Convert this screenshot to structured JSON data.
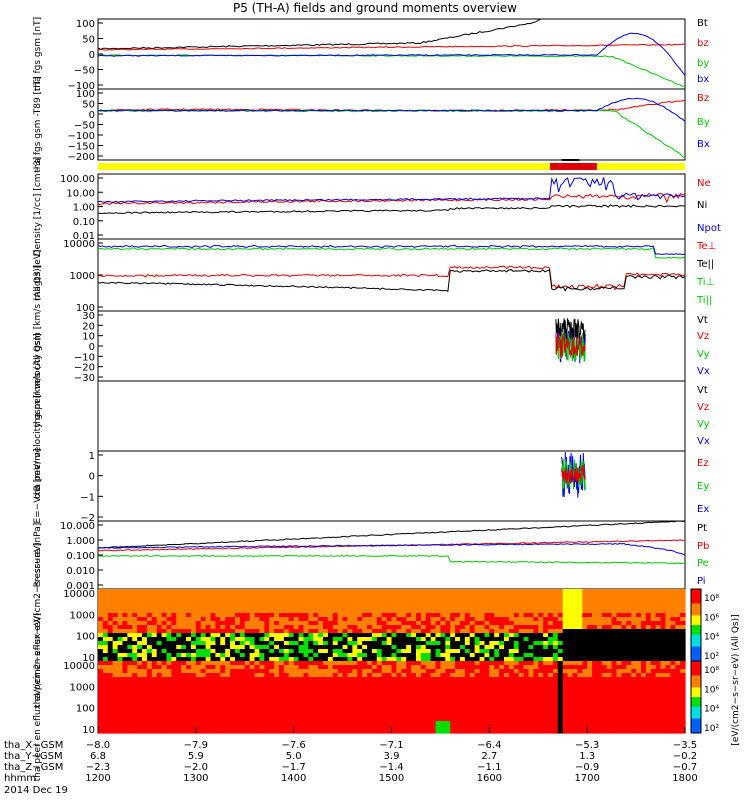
{
  "title": "P5 (TH-A) fields and ground moments overview",
  "date": "2014 Dec 19",
  "colors": {
    "black": "#000000",
    "red": "#e00000",
    "green": "#00c800",
    "blue": "#0000e0",
    "bar_yellow": "#ffff00"
  },
  "chart_data": [
    {
      "type": "line",
      "id": "fgs_gsm",
      "ylabel": "tha fgs gsm [nT]",
      "ylim": [
        -100,
        100
      ],
      "yticks": [
        "100",
        "50",
        "0",
        "−50",
        "−100"
      ],
      "series": [
        {
          "name": "Bt",
          "color": "black"
        },
        {
          "name": "bz",
          "color": "red"
        },
        {
          "name": "by",
          "color": "green"
        },
        {
          "name": "bx",
          "color": "blue"
        }
      ]
    },
    {
      "type": "line",
      "id": "fgs_dip",
      "ylabel": "tha fgs gsm -T89 [nT]",
      "ylim": [
        -230,
        100
      ],
      "yticks": [
        "100",
        "50",
        "0",
        "−50",
        "−100",
        "−150",
        "−200"
      ],
      "series": [
        {
          "name": "Bz",
          "color": "red"
        },
        {
          "name": "By",
          "color": "green"
        },
        {
          "name": "Bx",
          "color": "blue"
        }
      ]
    },
    {
      "type": "line",
      "id": "density",
      "ylabel": "Density [1/cc] [cm−3]",
      "yscale": "log",
      "yticks": [
        "100.00",
        "10.00",
        "1.00",
        "0.10",
        "0.01"
      ],
      "series": [
        {
          "name": "Ne",
          "color": "red"
        },
        {
          "name": "Ni",
          "color": "black"
        },
        {
          "name": "Npot",
          "color": "blue"
        }
      ]
    },
    {
      "type": "line",
      "id": "temp",
      "ylabel": "magt3 [eV]",
      "yscale": "log",
      "yticks": [
        "10000",
        "1000",
        "100"
      ],
      "series": [
        {
          "name": "Te⊥",
          "color": "red"
        },
        {
          "name": "Te||",
          "color": "black"
        },
        {
          "name": "Ti⊥",
          "color": "green"
        },
        {
          "name": "Ti||",
          "color": "green"
        }
      ]
    },
    {
      "type": "line",
      "id": "peir_vel",
      "ylabel": "tha peir velocity gsm [km/s (All Qs)]",
      "ylim": [
        -30,
        30
      ],
      "yticks": [
        "30",
        "20",
        "10",
        "0",
        "−10",
        "−20",
        "−30"
      ],
      "series": [
        {
          "name": "Vt",
          "color": "black"
        },
        {
          "name": "Vz",
          "color": "red"
        },
        {
          "name": "Vy",
          "color": "green"
        },
        {
          "name": "Vx",
          "color": "blue"
        }
      ]
    },
    {
      "type": "line",
      "id": "peer_vel",
      "ylabel": "tha peer velocity gsm [km/s (All Qs)]",
      "series": [
        {
          "name": "Vt",
          "color": "black"
        },
        {
          "name": "Vz",
          "color": "red"
        },
        {
          "name": "Vy",
          "color": "green"
        },
        {
          "name": "Vx",
          "color": "blue"
        }
      ]
    },
    {
      "type": "line",
      "id": "efield",
      "ylabel": "E=−VxB [mV/m]",
      "ylim": [
        -2,
        1
      ],
      "yticks": [
        "1",
        "0",
        "−1",
        "−2"
      ],
      "series": [
        {
          "name": "Ez",
          "color": "red"
        },
        {
          "name": "Ey",
          "color": "green"
        },
        {
          "name": "Ex",
          "color": "blue"
        }
      ]
    },
    {
      "type": "line",
      "id": "pressure",
      "ylabel": "Pressure [nPa]",
      "yscale": "log",
      "yticks": [
        "10.000",
        "1.000",
        "0.100",
        "0.010",
        "0.001"
      ],
      "series": [
        {
          "name": "Pt",
          "color": "black"
        },
        {
          "name": "Pb",
          "color": "red"
        },
        {
          "name": "Pe",
          "color": "green"
        },
        {
          "name": "Pi",
          "color": "blue"
        }
      ]
    },
    {
      "type": "heatmap",
      "id": "peir_spec",
      "ylabel": "tha peir en eflux eV/(cm2−s−sr−eV)",
      "yscale": "log",
      "yticks": [
        "10000",
        "1000",
        "100",
        "10"
      ]
    },
    {
      "type": "heatmap",
      "id": "peer_spec",
      "ylabel": "tha peer en eflux eV/(cm2−s−sr−eV)",
      "yscale": "log",
      "yticks": [
        "10000",
        "1000",
        "100",
        "10"
      ]
    }
  ],
  "colorbar": {
    "label": "[eV/(cm2−s−sr−eV) (All Qs)]",
    "ticks_top": [
      "10⁸",
      "10⁶",
      "10⁴",
      "10²"
    ],
    "ticks_bottom": [
      "10⁸",
      "10⁶",
      "10⁴",
      "10²"
    ]
  },
  "xaxis": {
    "rows": [
      {
        "label": "tha_X−GSM",
        "values": [
          "−8.0",
          "−7.9",
          "−7.6",
          "−7.1",
          "−6.4",
          "−5.3",
          "−3.5"
        ]
      },
      {
        "label": "tha_Y−GSM",
        "values": [
          "6.8",
          "5.9",
          "5.0",
          "3.9",
          "2.7",
          "1.3",
          "−0.2"
        ]
      },
      {
        "label": "tha_Z−GSM",
        "values": [
          "−2.3",
          "−2.0",
          "−1.7",
          "−1.4",
          "−1.1",
          "−0.9",
          "−0.7"
        ]
      },
      {
        "label": "hhmm",
        "values": [
          "1200",
          "1300",
          "1400",
          "1500",
          "1600",
          "1700",
          "1800"
        ]
      }
    ]
  }
}
